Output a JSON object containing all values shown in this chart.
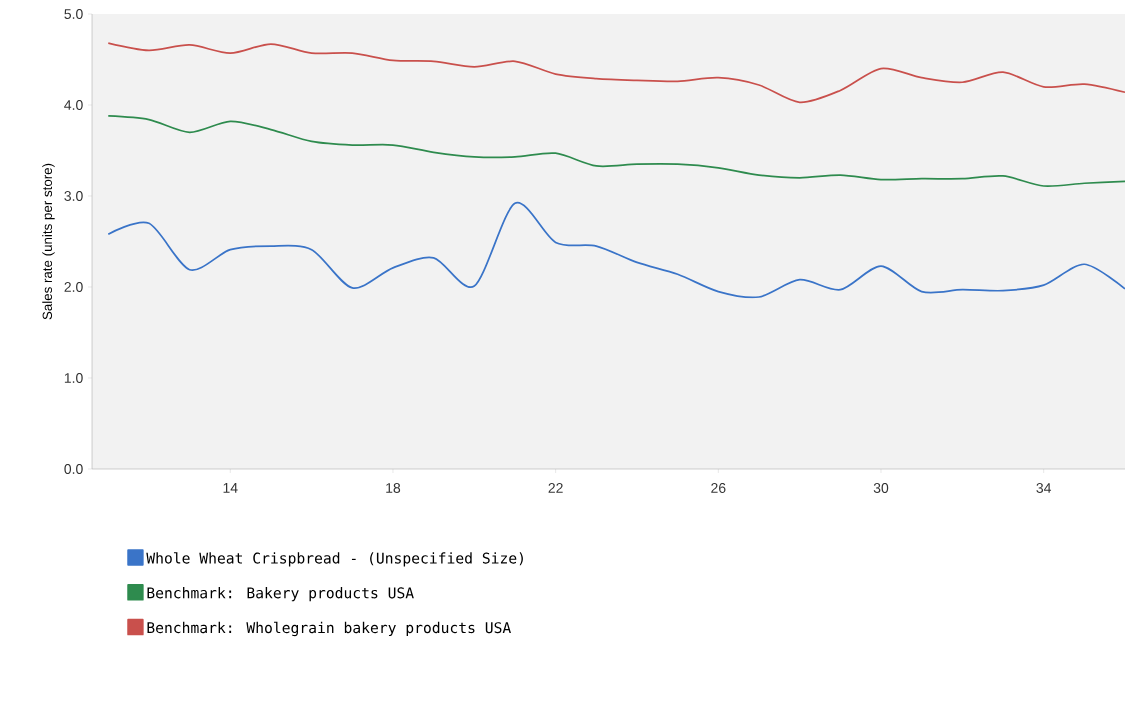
{
  "chart_data": {
    "type": "line",
    "ylabel": "Sales rate (units per store)",
    "x": [
      11,
      12,
      13,
      14,
      15,
      16,
      17,
      18,
      19,
      20,
      21,
      22,
      23,
      24,
      25,
      26,
      27,
      28,
      29,
      30,
      31,
      32,
      33,
      34,
      35,
      36
    ],
    "series": [
      {
        "name": "Whole Wheat Crispbread - (Unspecified Size)",
        "color": "#3a74c8",
        "values": [
          2.58,
          2.7,
          2.19,
          2.41,
          2.45,
          2.41,
          1.99,
          2.21,
          2.32,
          2.01,
          2.92,
          2.49,
          2.45,
          2.27,
          2.14,
          1.95,
          1.89,
          2.08,
          1.97,
          2.23,
          1.95,
          1.97,
          1.96,
          2.02,
          2.25,
          1.98
        ]
      },
      {
        "name": "Benchmark: Bakery products USA",
        "color": "#2e8b4e",
        "values": [
          3.88,
          3.84,
          3.7,
          3.82,
          3.73,
          3.6,
          3.56,
          3.56,
          3.48,
          3.43,
          3.43,
          3.47,
          3.33,
          3.35,
          3.35,
          3.31,
          3.23,
          3.2,
          3.23,
          3.18,
          3.19,
          3.19,
          3.22,
          3.11,
          3.14,
          3.16
        ]
      },
      {
        "name": "Benchmark: Wholegrain bakery products USA",
        "color": "#c9504c",
        "values": [
          4.68,
          4.6,
          4.66,
          4.57,
          4.67,
          4.57,
          4.57,
          4.49,
          4.48,
          4.42,
          4.48,
          4.34,
          4.29,
          4.27,
          4.26,
          4.3,
          4.22,
          4.03,
          4.16,
          4.4,
          4.3,
          4.25,
          4.36,
          4.2,
          4.23,
          4.14
        ]
      }
    ],
    "xlim": [
      10.6,
      36
    ],
    "ylim": [
      0,
      5
    ],
    "xticks": [
      14,
      18,
      22,
      26,
      30,
      34
    ],
    "yticks": [
      {
        "value": 0,
        "label": "0.0"
      },
      {
        "value": 1,
        "label": "1.0"
      },
      {
        "value": 2,
        "label": "2.0"
      },
      {
        "value": 3,
        "label": "3.0"
      },
      {
        "value": 4,
        "label": "4.0"
      },
      {
        "value": 5,
        "label": "5.0"
      }
    ],
    "grid": false,
    "legend": "bottom",
    "marker": "none",
    "line_style": "solid"
  }
}
